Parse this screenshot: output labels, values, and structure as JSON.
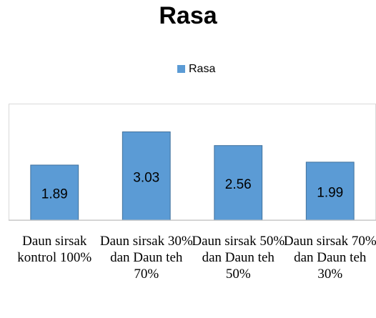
{
  "chart_data": {
    "type": "bar",
    "title": "Rasa",
    "categories": [
      "Daun sirsak kontrol 100%",
      "Daun sirsak 30% dan Daun teh 70%",
      "Daun sirsak 50% dan Daun teh 50%",
      "Daun sirsak 70% dan Daun teh 30%"
    ],
    "series": [
      {
        "name": "Rasa",
        "color": "#5b9bd5",
        "values": [
          1.89,
          3.03,
          2.56,
          1.99
        ]
      }
    ],
    "ylim": [
      0,
      4
    ],
    "legend": "top",
    "grid": false
  }
}
